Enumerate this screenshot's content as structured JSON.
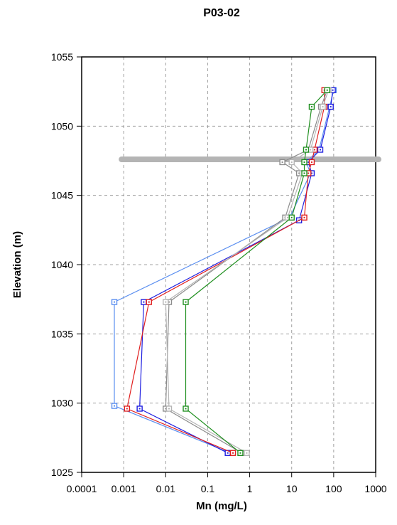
{
  "chart_data": {
    "type": "line",
    "title": "P03-02",
    "xlabel": "Mn (mg/L)",
    "ylabel": "Elevation (m)",
    "x_scale": "log",
    "xlim": [
      0.0001,
      1000
    ],
    "ylim": [
      1025,
      1055
    ],
    "x_ticks": [
      "0.0001",
      "0.001",
      "0.01",
      "0.1",
      "1",
      "10",
      "100",
      "1000"
    ],
    "y_ticks": [
      "1025",
      "1030",
      "1035",
      "1040",
      "1045",
      "1050",
      "1055"
    ],
    "grid": true,
    "reference_line": {
      "elevation": 1047.6,
      "color": "#b4b4b4"
    },
    "series": [
      {
        "color": "#5b8ff0",
        "marker": "square",
        "x": [
          100,
          80,
          45,
          22,
          28,
          9,
          0.0006,
          0.0006,
          0.35
        ],
        "y": [
          1052.6,
          1051.4,
          1048.3,
          1047.4,
          1046.6,
          1043.4,
          1037.3,
          1029.8,
          1026.4
        ]
      },
      {
        "color": "#1f1fe0",
        "marker": "square",
        "x": [
          95,
          85,
          48,
          25,
          30,
          15,
          0.003,
          0.0024,
          0.3
        ],
        "y": [
          1052.6,
          1051.4,
          1048.3,
          1047.4,
          1046.6,
          1043.2,
          1037.3,
          1029.6,
          1026.4
        ]
      },
      {
        "color": "#e01f1f",
        "marker": "square",
        "x": [
          60,
          60,
          35,
          30,
          25,
          20,
          0.004,
          0.0012,
          0.4
        ],
        "y": [
          1052.6,
          1051.4,
          1048.3,
          1047.4,
          1046.6,
          1043.4,
          1037.3,
          1029.6,
          1026.4
        ]
      },
      {
        "color": "#8c8c8c",
        "marker": "square",
        "x": [
          70,
          50,
          25,
          6,
          15,
          7,
          0.012,
          0.01,
          0.65
        ],
        "y": [
          1052.6,
          1051.4,
          1048.3,
          1047.4,
          1046.6,
          1043.4,
          1037.3,
          1029.6,
          1026.4
        ]
      },
      {
        "color": "#b4b4b4",
        "marker": "square",
        "x": [
          75,
          55,
          28,
          10,
          18,
          8,
          0.01,
          0.012,
          0.85
        ],
        "y": [
          1052.6,
          1051.4,
          1048.3,
          1047.4,
          1046.6,
          1043.4,
          1037.3,
          1029.6,
          1026.4
        ]
      },
      {
        "color": "#1f8f1f",
        "marker": "square",
        "x": [
          70,
          30,
          22,
          20,
          20,
          10,
          0.03,
          0.03,
          0.6
        ],
        "y": [
          1052.6,
          1051.4,
          1048.3,
          1047.4,
          1046.6,
          1043.4,
          1037.3,
          1029.6,
          1026.4
        ]
      }
    ]
  }
}
